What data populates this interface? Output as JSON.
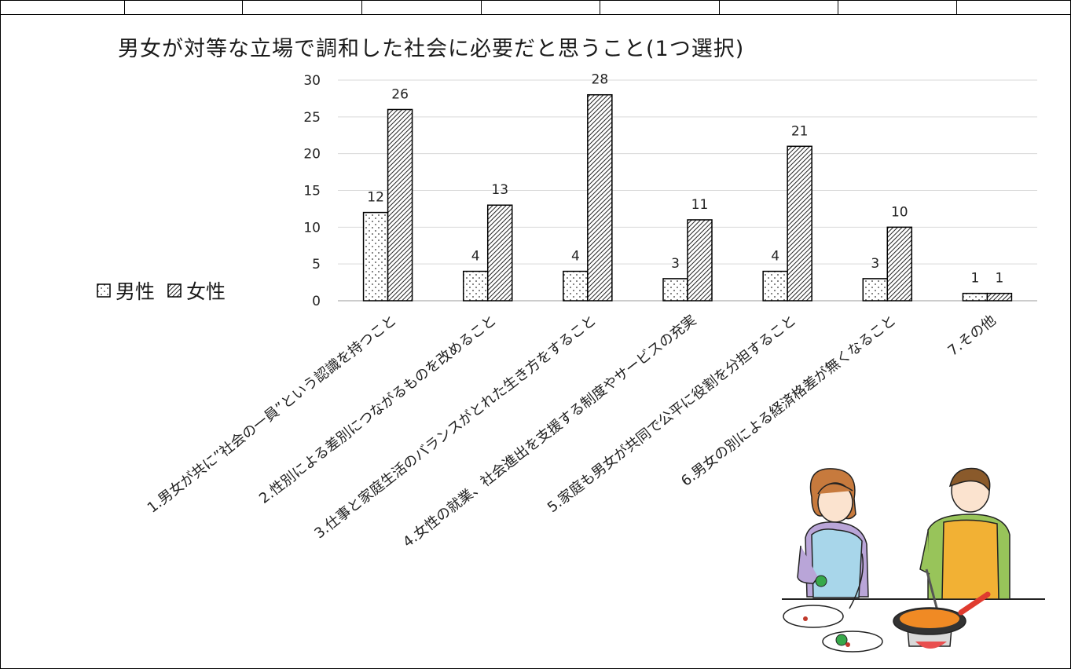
{
  "chart_data": {
    "type": "bar",
    "title": "男女が対等な立場で調和した社会に必要だと思うこと(1つ選択)",
    "categories": [
      "1.男女が共に”社会の一員”という認識を持つこと",
      "2.性別による差別につながるものを改めること",
      "3.仕事と家庭生活のバランスがとれた生き方をすること",
      "4.女性の就業、社会進出を支援する制度やサービスの充実",
      "5.家庭も男女が共同で公平に役割を分担すること",
      "6.男女の別による経済格差が無くなること",
      "7.その他"
    ],
    "series": [
      {
        "name": "男性",
        "values": [
          12,
          4,
          4,
          3,
          4,
          3,
          1
        ],
        "pattern": "dots"
      },
      {
        "name": "女性",
        "values": [
          26,
          13,
          28,
          11,
          21,
          10,
          1
        ],
        "pattern": "hatch"
      }
    ],
    "ylim": [
      0,
      30
    ],
    "yticks": [
      0,
      5,
      10,
      15,
      20,
      25,
      30
    ],
    "grid": true,
    "legend_position": "left",
    "xlabel": "",
    "ylabel": ""
  },
  "legend": {
    "male": "男性",
    "female": "女性"
  },
  "illustration": {
    "name": "couple-cooking-illustration"
  }
}
